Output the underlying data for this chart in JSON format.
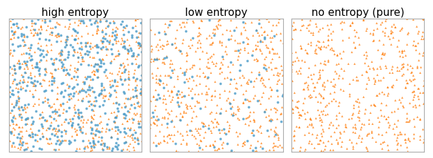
{
  "titles": [
    "high entropy",
    "low entropy",
    "no entropy (pure)"
  ],
  "panels": [
    {
      "n_orange": 600,
      "n_blue": 500,
      "seed": 42
    },
    {
      "n_orange": 600,
      "n_blue": 100,
      "seed": 7
    },
    {
      "n_orange": 600,
      "n_blue": 0,
      "seed": 13
    }
  ],
  "orange_color": "#ff7f0e",
  "blue_color": "#4c9cc9",
  "marker_size_orange": 5,
  "marker_size_blue": 7,
  "alpha_orange": 0.75,
  "alpha_blue": 0.8,
  "figsize": [
    6.27,
    2.3
  ],
  "dpi": 100,
  "title_fontsize": 11
}
